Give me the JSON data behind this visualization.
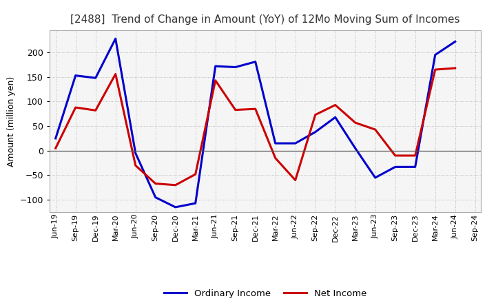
{
  "title": "[2488]  Trend of Change in Amount (YoY) of 12Mo Moving Sum of Incomes",
  "ylabel": "Amount (million yen)",
  "x_labels": [
    "Jun-19",
    "Sep-19",
    "Dec-19",
    "Mar-20",
    "Jun-20",
    "Sep-20",
    "Dec-20",
    "Mar-21",
    "Jun-21",
    "Sep-21",
    "Dec-21",
    "Mar-22",
    "Jun-22",
    "Sep-22",
    "Dec-22",
    "Mar-23",
    "Jun-23",
    "Sep-23",
    "Dec-23",
    "Mar-24",
    "Jun-24",
    "Sep-24"
  ],
  "ordinary_income": [
    25,
    153,
    148,
    228,
    -5,
    -95,
    -115,
    -107,
    172,
    170,
    181,
    15,
    15,
    38,
    68,
    5,
    -55,
    -33,
    -33,
    195,
    222,
    null
  ],
  "net_income": [
    5,
    88,
    82,
    156,
    -30,
    -67,
    -70,
    -48,
    143,
    83,
    85,
    -15,
    -60,
    73,
    93,
    57,
    43,
    -10,
    -10,
    165,
    168,
    null
  ],
  "ordinary_color": "#0000cc",
  "net_color": "#cc0000",
  "ylim": [
    -125,
    245
  ],
  "yticks": [
    -100,
    -50,
    0,
    50,
    100,
    150,
    200
  ],
  "background_color": "#ffffff",
  "plot_bg_color": "#f5f5f5",
  "grid_color": "#999999",
  "title_color": "#333333",
  "legend_labels": [
    "Ordinary Income",
    "Net Income"
  ]
}
